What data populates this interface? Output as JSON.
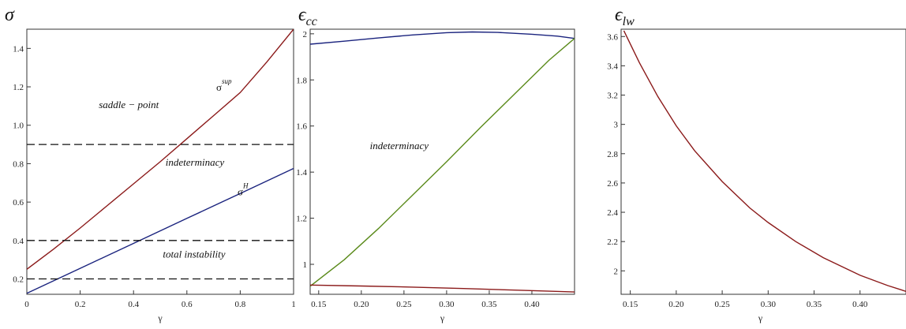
{
  "chart_data": [
    {
      "type": "line",
      "title": "σ",
      "title_sub": "",
      "xlabel": "γ",
      "ylabel": "",
      "xlim": [
        0,
        1
      ],
      "ylim": [
        0.12,
        1.5
      ],
      "xticks": [
        0,
        0.2,
        0.4,
        0.6,
        0.8,
        1
      ],
      "xtick_labels": [
        "0",
        "0.2",
        "0.4",
        "0.6",
        "0.8",
        "1"
      ],
      "yticks": [
        0.2,
        0.4,
        0.6,
        0.8,
        1.0,
        1.2,
        1.4
      ],
      "ytick_labels": [
        "0.2",
        "0.4",
        "0.6",
        "0.8",
        "1.0",
        "1.2",
        "1.4"
      ],
      "grid": false,
      "series": [
        {
          "name": "σ^sup",
          "color": "#8b1a1a",
          "style": "solid",
          "x": [
            0,
            0.1,
            0.2,
            0.3,
            0.4,
            0.5,
            0.6,
            0.7,
            0.8,
            0.9,
            1.0
          ],
          "y": [
            0.25,
            0.355,
            0.465,
            0.58,
            0.695,
            0.81,
            0.93,
            1.05,
            1.17,
            1.33,
            1.5
          ]
        },
        {
          "name": "σ^H",
          "color": "#1a237e",
          "style": "solid",
          "x": [
            0,
            0.2,
            0.4,
            0.6,
            0.8,
            1.0
          ],
          "y": [
            0.125,
            0.255,
            0.385,
            0.515,
            0.645,
            0.775
          ]
        },
        {
          "name": "",
          "color": "#111111",
          "style": "dashed",
          "x": [
            0,
            1
          ],
          "y": [
            0.9,
            0.9
          ]
        },
        {
          "name": "",
          "color": "#111111",
          "style": "dashed",
          "x": [
            0,
            1
          ],
          "y": [
            0.4,
            0.4
          ]
        },
        {
          "name": "",
          "color": "#111111",
          "style": "dashed",
          "x": [
            0,
            1
          ],
          "y": [
            0.2,
            0.2
          ]
        }
      ],
      "annotations": [
        {
          "text": "saddle − point",
          "x": 0.27,
          "y": 1.09
        },
        {
          "text": "indeterminacy",
          "x": 0.52,
          "y": 0.79
        },
        {
          "text": "total instability",
          "x": 0.51,
          "y": 0.31
        }
      ],
      "curve_labels": [
        {
          "base": "σ",
          "sup": "sup",
          "x": 0.71,
          "y": 1.18
        },
        {
          "base": "σ",
          "sup": "H",
          "x": 0.79,
          "y": 0.635
        }
      ]
    },
    {
      "type": "line",
      "title": "ϵ",
      "title_sub": "cc",
      "xlabel": "γ",
      "ylabel": "",
      "xlim": [
        0.14,
        0.45
      ],
      "ylim": [
        0.87,
        2.02
      ],
      "xticks": [
        0.15,
        0.2,
        0.25,
        0.3,
        0.35,
        0.4
      ],
      "xtick_labels": [
        "0.15",
        "0.20",
        "0.25",
        "0.30",
        "0.35",
        "0.40"
      ],
      "yticks": [
        1,
        1.2,
        1.4,
        1.6,
        1.8,
        2
      ],
      "ytick_labels": [
        "1",
        "1.2",
        "1.4",
        "1.6",
        "1.8",
        "2"
      ],
      "grid": false,
      "series": [
        {
          "name": "",
          "color": "#1a237e",
          "style": "solid",
          "x": [
            0.14,
            0.18,
            0.22,
            0.26,
            0.3,
            0.33,
            0.36,
            0.4,
            0.43,
            0.45
          ],
          "y": [
            1.955,
            1.968,
            1.982,
            1.995,
            2.005,
            2.008,
            2.006,
            1.998,
            1.99,
            1.98
          ]
        },
        {
          "name": "",
          "color": "#5a8a1a",
          "style": "solid",
          "x": [
            0.14,
            0.18,
            0.22,
            0.26,
            0.3,
            0.34,
            0.38,
            0.42,
            0.45
          ],
          "y": [
            0.905,
            1.02,
            1.155,
            1.3,
            1.445,
            1.595,
            1.74,
            1.885,
            1.98
          ]
        },
        {
          "name": "",
          "color": "#8b1a1a",
          "style": "solid",
          "x": [
            0.14,
            0.2,
            0.26,
            0.32,
            0.38,
            0.45
          ],
          "y": [
            0.91,
            0.906,
            0.901,
            0.895,
            0.888,
            0.88
          ]
        }
      ],
      "annotations": [
        {
          "text": "indeterminacy",
          "x": 0.21,
          "y": 1.5
        }
      ],
      "curve_labels": []
    },
    {
      "type": "line",
      "title": "ϵ",
      "title_sub": "lw",
      "xlabel": "γ",
      "ylabel": "",
      "xlim": [
        0.14,
        0.45
      ],
      "ylim": [
        1.84,
        3.65
      ],
      "xticks": [
        0.15,
        0.2,
        0.25,
        0.3,
        0.35,
        0.4
      ],
      "xtick_labels": [
        "0.15",
        "0.20",
        "0.25",
        "0.30",
        "0.35",
        "0.40"
      ],
      "yticks": [
        2,
        2.2,
        2.4,
        2.6,
        2.8,
        3,
        3.2,
        3.4,
        3.6
      ],
      "ytick_labels": [
        "2",
        "2.2",
        "2.4",
        "2.6",
        "2.8",
        "3",
        "3.2",
        "3.4",
        "3.6"
      ],
      "grid": false,
      "series": [
        {
          "name": "",
          "color": "#8b1a1a",
          "style": "solid",
          "x": [
            0.143,
            0.16,
            0.18,
            0.2,
            0.22,
            0.25,
            0.28,
            0.3,
            0.33,
            0.36,
            0.4,
            0.43,
            0.45
          ],
          "y": [
            3.64,
            3.42,
            3.19,
            2.99,
            2.82,
            2.61,
            2.43,
            2.33,
            2.2,
            2.09,
            1.97,
            1.9,
            1.86
          ]
        }
      ],
      "annotations": [],
      "curve_labels": []
    }
  ]
}
